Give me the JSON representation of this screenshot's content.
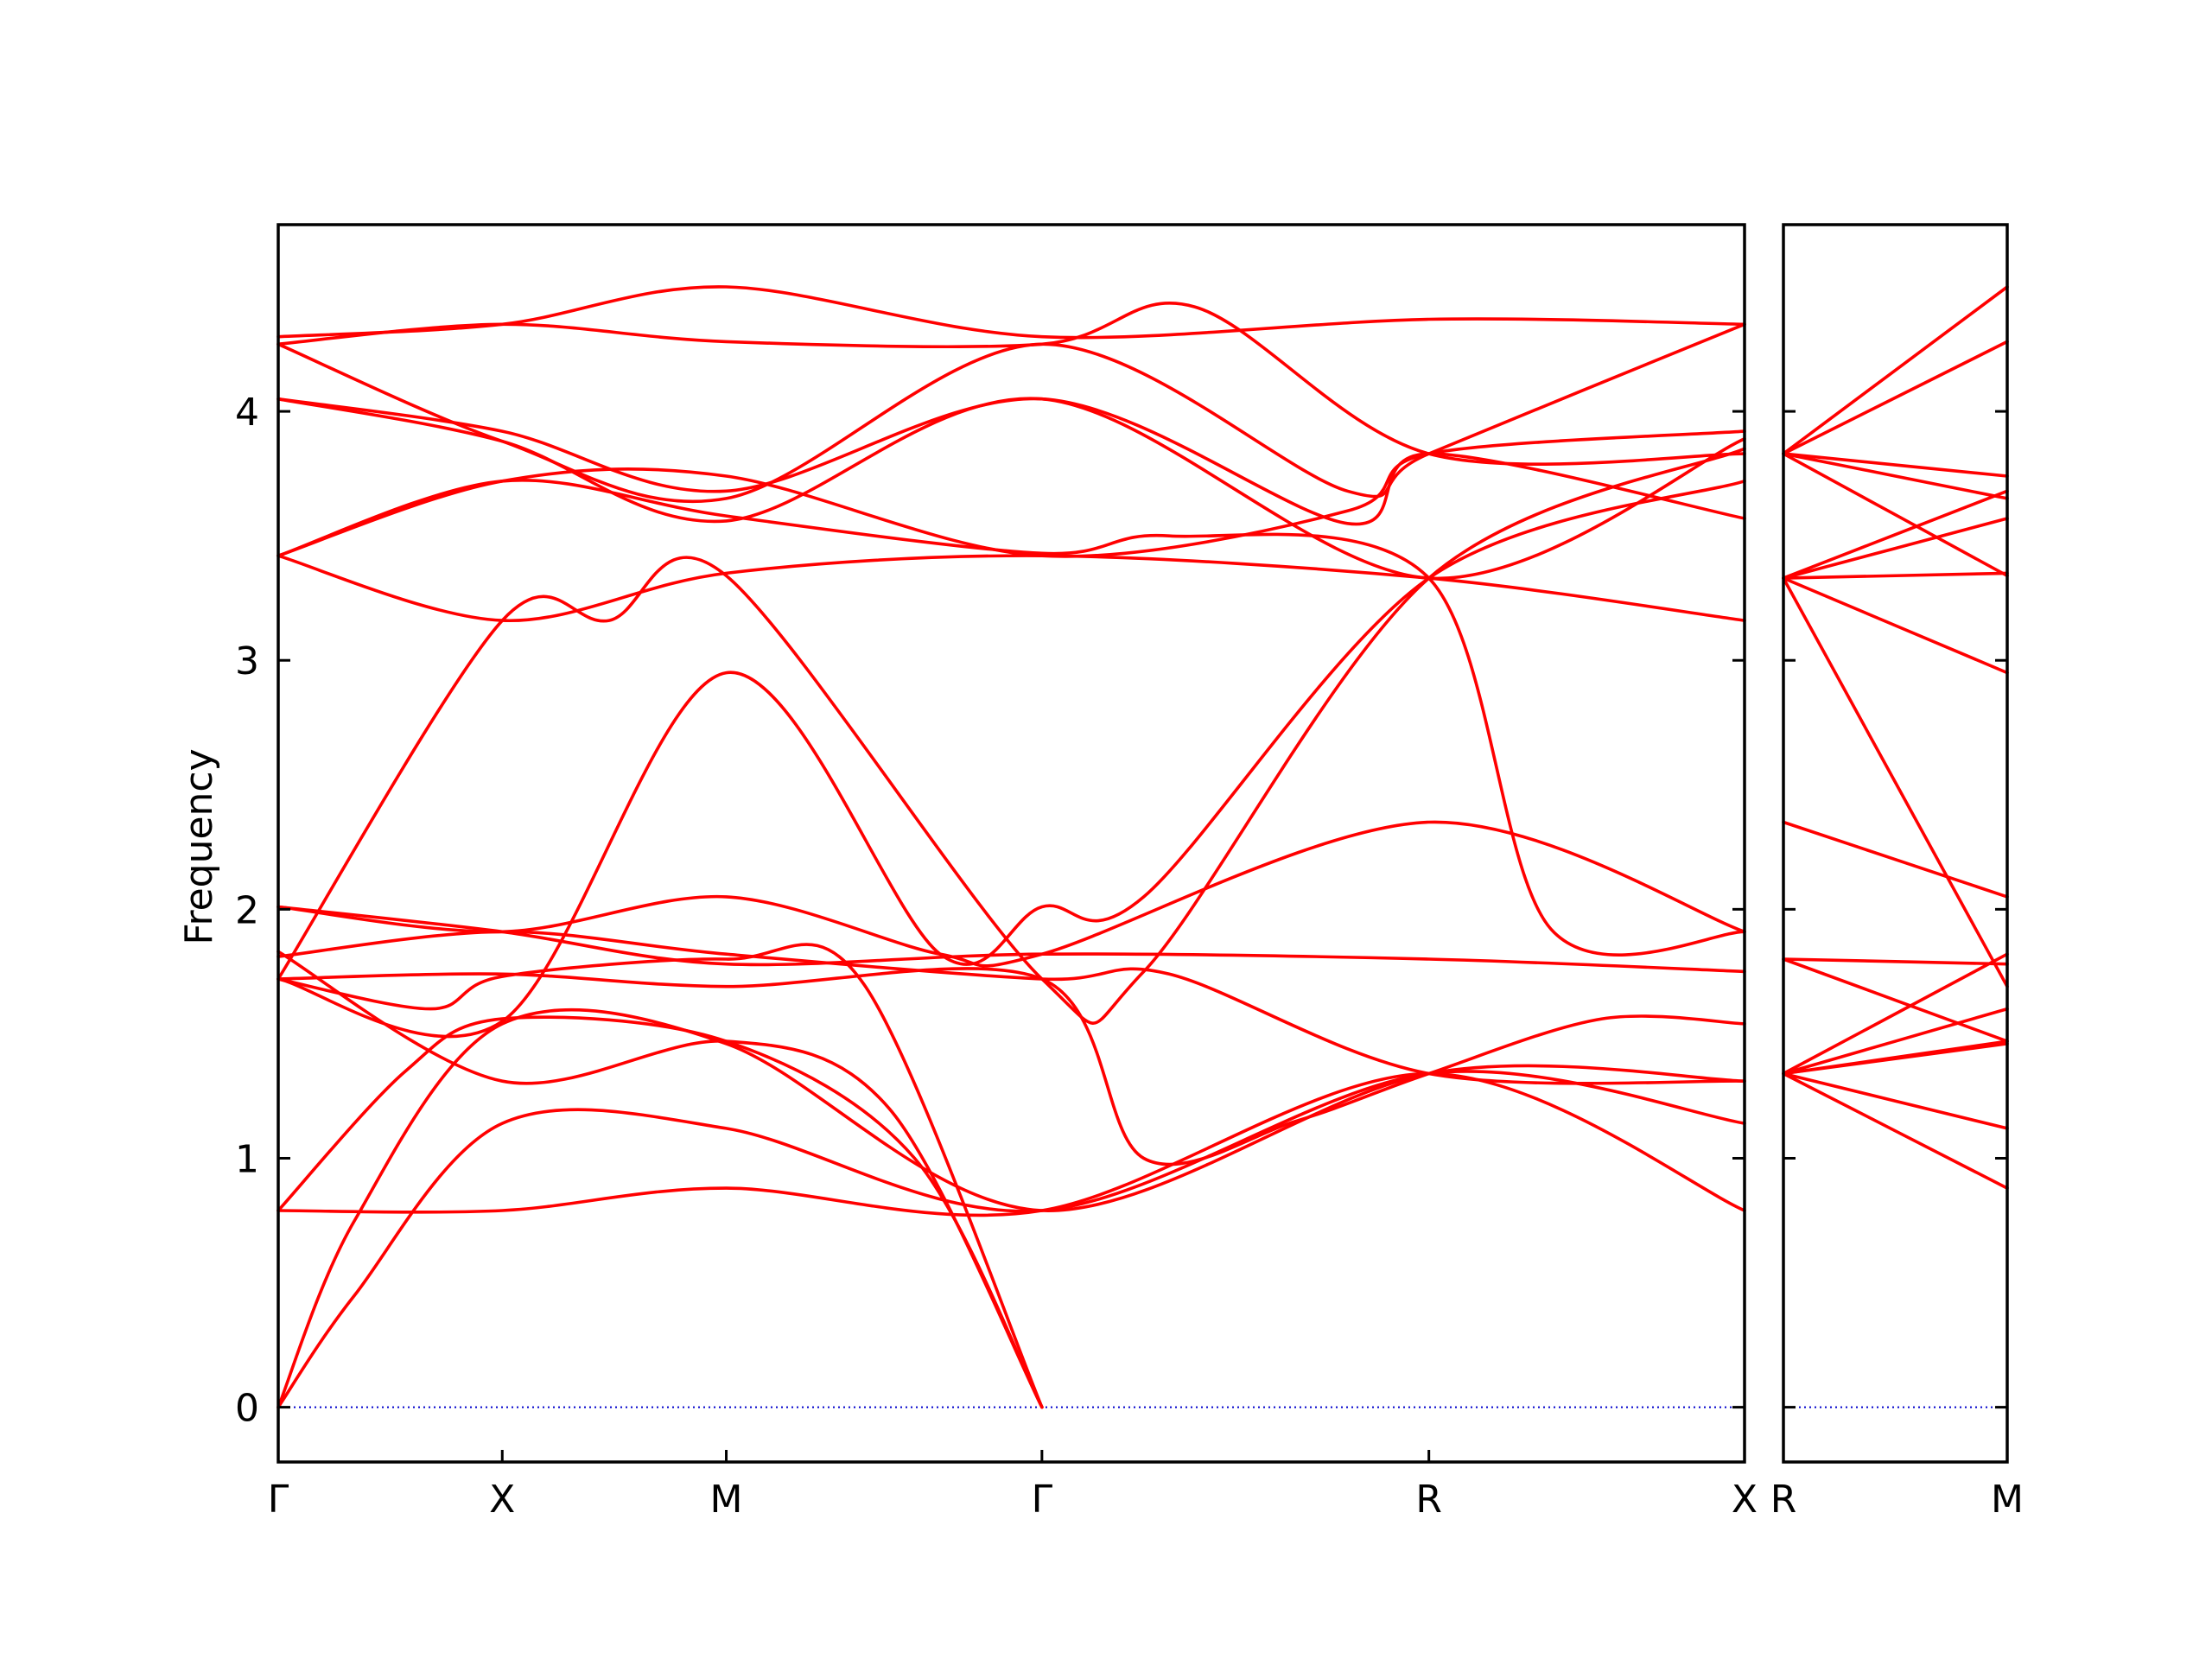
{
  "colors": {
    "band": "#ff0000",
    "zero_line": "#0000cc",
    "axes": "#000000"
  },
  "chart_data": [
    {
      "type": "line",
      "panel": "left",
      "ylabel": "Frequency",
      "ylim": [
        -0.22,
        4.75
      ],
      "yticks": [
        0,
        1,
        2,
        3,
        4
      ],
      "ytick_labels": [
        "0",
        "1",
        "2",
        "3",
        "4"
      ],
      "xlim": [
        0,
        5.76
      ],
      "xticks": [
        0,
        0.88,
        1.76,
        3.0,
        4.52,
        5.76
      ],
      "xtick_labels": [
        "Γ",
        "X",
        "M",
        "Γ",
        "R",
        "X"
      ],
      "grid": false,
      "series": [
        {
          "x": [
            0,
            0.88,
            1.76,
            3.0,
            4.52,
            5.76
          ],
          "y": [
            0.79,
            0.79,
            0.88,
            0.79,
            1.34,
            0.79
          ]
        },
        {
          "x": [
            0,
            0.3,
            0.88,
            1.76,
            3.0,
            4.52,
            5.76
          ],
          "y": [
            0.0,
            0.45,
            1.14,
            1.12,
            0.79,
            1.34,
            1.14
          ]
        },
        {
          "x": [
            0,
            0.3,
            0.88,
            1.76,
            3.0,
            4.52,
            5.76
          ],
          "y": [
            0.0,
            0.75,
            1.54,
            1.46,
            0.79,
            1.34,
            1.31
          ]
        },
        {
          "x": [
            0,
            0.5,
            0.88,
            1.76,
            2.5,
            3.0
          ],
          "y": [
            0.79,
            1.35,
            1.56,
            1.47,
            1.0,
            0.0
          ]
        },
        {
          "x": [
            0,
            0.88,
            1.76,
            2.4,
            3.0
          ],
          "y": [
            1.83,
            1.31,
            1.47,
            1.2,
            0.0
          ]
        },
        {
          "x": [
            0,
            0.6,
            0.88,
            1.76,
            2.3,
            3.0
          ],
          "y": [
            1.72,
            1.6,
            1.73,
            1.8,
            1.7,
            0.0
          ]
        },
        {
          "x": [
            0,
            0.88,
            1.76,
            3.0,
            3.4,
            4.0,
            4.52,
            5.2,
            5.76
          ],
          "y": [
            1.72,
            1.74,
            1.69,
            1.72,
            1.0,
            1.15,
            1.34,
            1.56,
            1.54
          ]
        },
        {
          "x": [
            0,
            0.88,
            1.76,
            3.0,
            3.5,
            4.52,
            5.76
          ],
          "y": [
            1.81,
            1.91,
            1.82,
            1.72,
            1.74,
            1.34,
            1.31
          ]
        },
        {
          "x": [
            0,
            0.88,
            1.76,
            3.0,
            4.52,
            5.76
          ],
          "y": [
            2.01,
            1.91,
            1.78,
            1.82,
            1.8,
            1.75
          ]
        },
        {
          "x": [
            0,
            0.88,
            1.76,
            2.6,
            3.0,
            4.52,
            5.76
          ],
          "y": [
            2.01,
            1.91,
            2.05,
            1.82,
            1.82,
            2.35,
            1.91
          ]
        },
        {
          "x": [
            0,
            0.88,
            1.3,
            1.76,
            3.0,
            3.4,
            4.52,
            5.76
          ],
          "y": [
            1.72,
            3.16,
            3.16,
            3.34,
            1.72,
            1.75,
            3.33,
            3.85
          ]
        },
        {
          "x": [
            0,
            0.88,
            1.76,
            2.6,
            3.0,
            3.4,
            4.52,
            5.76
          ],
          "y": [
            1.72,
            1.55,
            2.95,
            1.82,
            2.01,
            2.05,
            3.33,
            3.72
          ]
        },
        {
          "x": [
            0,
            0.88,
            1.76,
            3.0,
            4.52,
            5.76
          ],
          "y": [
            3.42,
            3.16,
            3.35,
            3.42,
            3.33,
            3.16
          ]
        },
        {
          "x": [
            0,
            0.88,
            1.76,
            3.0,
            3.5,
            4.52,
            5.0,
            5.76
          ],
          "y": [
            3.42,
            3.72,
            3.58,
            3.43,
            3.5,
            3.33,
            1.92,
            1.91
          ]
        },
        {
          "x": [
            0,
            0.88,
            1.76,
            3.0,
            4.2,
            4.52,
            5.76
          ],
          "y": [
            3.42,
            3.72,
            3.74,
            3.42,
            3.6,
            3.83,
            3.92
          ]
        },
        {
          "x": [
            0,
            0.88,
            1.76,
            3.0,
            4.52,
            5.76
          ],
          "y": [
            4.05,
            3.88,
            3.56,
            4.05,
            3.33,
            3.89
          ]
        },
        {
          "x": [
            0,
            0.88,
            1.76,
            3.0,
            4.2,
            4.52,
            5.76
          ],
          "y": [
            4.05,
            3.92,
            3.68,
            4.05,
            3.55,
            3.83,
            3.57
          ]
        },
        {
          "x": [
            0,
            0.88,
            1.76,
            3.0,
            4.2,
            4.52,
            5.76
          ],
          "y": [
            4.27,
            3.88,
            3.65,
            4.27,
            3.68,
            3.83,
            4.35
          ]
        },
        {
          "x": [
            0,
            0.88,
            1.76,
            3.0,
            4.52,
            5.76
          ],
          "y": [
            4.3,
            4.35,
            4.5,
            4.3,
            4.37,
            4.35
          ]
        },
        {
          "x": [
            0,
            0.88,
            1.76,
            3.0,
            3.6,
            4.52,
            5.76
          ],
          "y": [
            4.27,
            4.35,
            4.28,
            4.27,
            4.42,
            3.83,
            3.83
          ]
        }
      ],
      "zero_line": 0
    },
    {
      "type": "line",
      "panel": "right",
      "ylim": [
        -0.22,
        4.75
      ],
      "xlim": [
        0,
        0.88
      ],
      "xticks": [
        0,
        0.88
      ],
      "xtick_labels": [
        "R",
        "M"
      ],
      "grid": false,
      "series": [
        {
          "x": [
            0,
            0.88
          ],
          "y": [
            1.34,
            0.88
          ]
        },
        {
          "x": [
            0,
            0.88
          ],
          "y": [
            1.34,
            1.12
          ]
        },
        {
          "x": [
            0,
            0.88
          ],
          "y": [
            1.34,
            1.46
          ]
        },
        {
          "x": [
            0,
            0.88
          ],
          "y": [
            1.34,
            1.47
          ]
        },
        {
          "x": [
            0,
            0.88
          ],
          "y": [
            1.34,
            1.6
          ]
        },
        {
          "x": [
            0,
            0.88
          ],
          "y": [
            1.34,
            1.82
          ]
        },
        {
          "x": [
            0,
            0.88
          ],
          "y": [
            1.8,
            1.47
          ]
        },
        {
          "x": [
            0,
            0.88
          ],
          "y": [
            1.8,
            1.78
          ]
        },
        {
          "x": [
            0,
            0.88
          ],
          "y": [
            2.35,
            2.05
          ]
        },
        {
          "x": [
            0,
            0.88
          ],
          "y": [
            3.33,
            1.69
          ]
        },
        {
          "x": [
            0,
            0.88
          ],
          "y": [
            3.33,
            2.95
          ]
        },
        {
          "x": [
            0,
            0.88
          ],
          "y": [
            3.33,
            3.35
          ]
        },
        {
          "x": [
            0,
            0.88
          ],
          "y": [
            3.33,
            3.57
          ]
        },
        {
          "x": [
            0,
            0.88
          ],
          "y": [
            3.33,
            3.68
          ]
        },
        {
          "x": [
            0,
            0.88
          ],
          "y": [
            3.83,
            3.34
          ]
        },
        {
          "x": [
            0,
            0.88
          ],
          "y": [
            3.83,
            3.65
          ]
        },
        {
          "x": [
            0,
            0.88
          ],
          "y": [
            3.83,
            3.74
          ]
        },
        {
          "x": [
            0,
            0.88
          ],
          "y": [
            3.83,
            4.28
          ]
        },
        {
          "x": [
            0,
            0.88
          ],
          "y": [
            3.83,
            4.5
          ]
        }
      ],
      "zero_line": 0
    }
  ]
}
